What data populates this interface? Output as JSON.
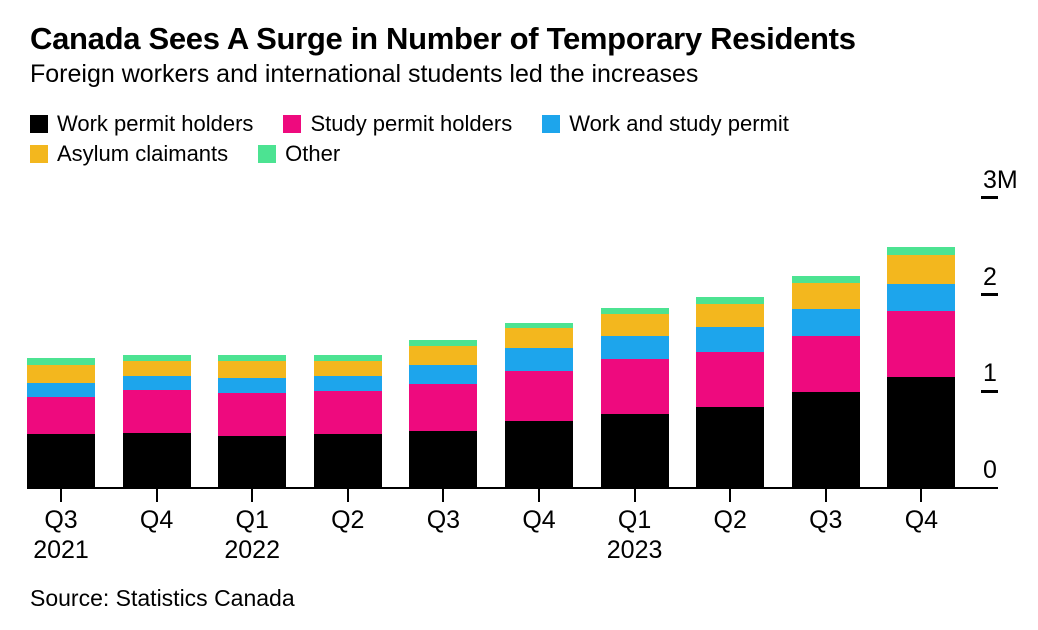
{
  "header": {
    "title": "Canada Sees A Surge in Number of Temporary Residents",
    "subtitle": "Foreign workers and international students led the increases"
  },
  "source": {
    "label": "Source: Statistics Canada"
  },
  "colors": {
    "work_permit_black": "#000000",
    "study_permit_pink": "#EE0A7E",
    "work_and_study_blue": "#1DA5EC",
    "asylum_yellow": "#F3B71E",
    "other_green": "#4CE392",
    "axis": "#000000",
    "background": "#FFFFFF"
  },
  "chart_data": {
    "type": "bar",
    "stacked": true,
    "unit": "M",
    "grid": false,
    "legend_position": "top",
    "legend_rows": [
      [
        0,
        1,
        2
      ],
      [
        3,
        4
      ]
    ],
    "categories": [
      "Q3 2021",
      "Q4 2021",
      "Q1 2022",
      "Q2 2022",
      "Q3 2022",
      "Q4 2022",
      "Q1 2023",
      "Q2 2023",
      "Q3 2023",
      "Q4 2023"
    ],
    "x_tick_labels": [
      {
        "quarter": "Q3",
        "year": "2021"
      },
      {
        "quarter": "Q4",
        "year": ""
      },
      {
        "quarter": "Q1",
        "year": "2022"
      },
      {
        "quarter": "Q2",
        "year": ""
      },
      {
        "quarter": "Q3",
        "year": ""
      },
      {
        "quarter": "Q4",
        "year": ""
      },
      {
        "quarter": "Q1",
        "year": "2023"
      },
      {
        "quarter": "Q2",
        "year": ""
      },
      {
        "quarter": "Q3",
        "year": ""
      },
      {
        "quarter": "Q4",
        "year": ""
      }
    ],
    "series": [
      {
        "name": "Work permit holders",
        "color": "#000000",
        "values": [
          0.55,
          0.56,
          0.53,
          0.55,
          0.58,
          0.68,
          0.76,
          0.83,
          0.98,
          1.14
        ]
      },
      {
        "name": "Study permit holders",
        "color": "#EE0A7E",
        "values": [
          0.38,
          0.44,
          0.44,
          0.44,
          0.49,
          0.52,
          0.56,
          0.57,
          0.58,
          0.68
        ]
      },
      {
        "name": "Work and study permit",
        "color": "#1DA5EC",
        "values": [
          0.15,
          0.15,
          0.16,
          0.16,
          0.19,
          0.24,
          0.24,
          0.25,
          0.28,
          0.28
        ]
      },
      {
        "name": "Asylum claimants",
        "color": "#F3B71E",
        "values": [
          0.18,
          0.15,
          0.17,
          0.15,
          0.2,
          0.2,
          0.23,
          0.24,
          0.27,
          0.3
        ]
      },
      {
        "name": "Other",
        "color": "#4CE392",
        "values": [
          0.07,
          0.06,
          0.07,
          0.07,
          0.06,
          0.06,
          0.06,
          0.07,
          0.07,
          0.08
        ]
      }
    ],
    "totals": [
      1.33,
      1.36,
      1.37,
      1.37,
      1.52,
      1.7,
      1.85,
      1.96,
      2.18,
      2.48
    ],
    "y_axis": {
      "side": "right",
      "ylim": [
        0,
        3
      ],
      "ticks": [
        {
          "value": 0,
          "label": "0"
        },
        {
          "value": 1,
          "label": "1"
        },
        {
          "value": 2,
          "label": "2"
        },
        {
          "value": 3,
          "label": "3M"
        }
      ]
    }
  }
}
